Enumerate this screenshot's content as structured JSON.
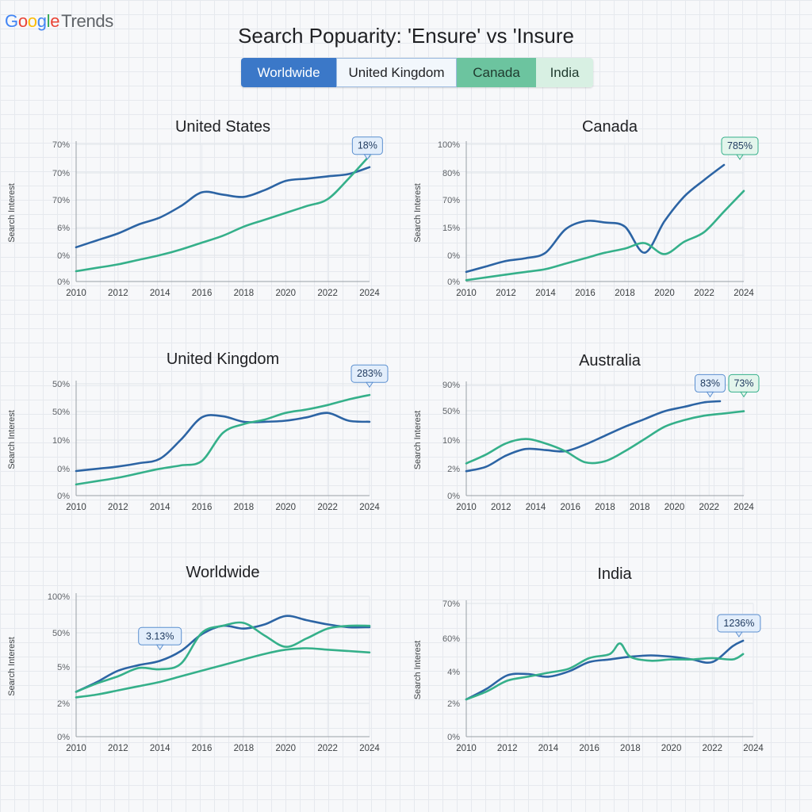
{
  "app": {
    "logo_text": "Google",
    "logo_suffix": "Trends",
    "page_title": "Search Popuarity: 'Ensure' vs 'Insure"
  },
  "tabs": [
    {
      "label": "Worldwide",
      "active": true
    },
    {
      "label": "United Kingdom",
      "active": false
    },
    {
      "label": "Canada",
      "active": false
    },
    {
      "label": "India",
      "active": false
    }
  ],
  "colors": {
    "series_blue": "#2c64a4",
    "series_green": "#35b08a",
    "accent_tab": "#3b78c8",
    "callout_blue_bg": "#e3eefb",
    "callout_green_bg": "#e3f5ec"
  },
  "chart_data": [
    {
      "type": "line",
      "title": "United States",
      "ylabel": "Search Interest",
      "x_ticks": [
        "2010",
        "2012",
        "2014",
        "2016",
        "2018",
        "2020",
        "2022",
        "2024"
      ],
      "y_ticks": [
        "0%",
        "0%",
        "6%",
        "70%",
        "70%",
        "70%"
      ],
      "series": [
        {
          "color_key": "series_blue",
          "x": [
            2010,
            2011,
            2012,
            2013,
            2014,
            2015,
            2016,
            2017,
            2018,
            2019,
            2020,
            2021,
            2022,
            2023,
            2024
          ],
          "y": [
            1.5,
            1.8,
            2.1,
            2.5,
            2.8,
            3.3,
            3.9,
            3.8,
            3.7,
            4.0,
            4.4,
            4.5,
            4.6,
            4.7,
            5.0
          ]
        },
        {
          "color_key": "series_green",
          "x": [
            2010,
            2011,
            2012,
            2013,
            2014,
            2015,
            2016,
            2017,
            2018,
            2019,
            2020,
            2021,
            2022,
            2023,
            2024
          ],
          "y": [
            0.45,
            0.6,
            0.75,
            0.95,
            1.15,
            1.4,
            1.7,
            2.0,
            2.4,
            2.7,
            3.0,
            3.3,
            3.6,
            4.5,
            5.5
          ]
        }
      ],
      "callout": {
        "text": "18%",
        "x": 2023.9,
        "y": 5.35,
        "style": "blue"
      }
    },
    {
      "type": "line",
      "title": "Canada",
      "ylabel": "Search Interest",
      "x_ticks": [
        "2010",
        "2012",
        "2014",
        "2016",
        "2018",
        "2020",
        "2022",
        "2024"
      ],
      "y_ticks": [
        "0%",
        "0%",
        "15%",
        "70%",
        "80%",
        "100%"
      ],
      "series": [
        {
          "color_key": "series_blue",
          "x": [
            2010,
            2011,
            2012,
            2013,
            2014,
            2015,
            2016,
            2017,
            2018,
            2019,
            2020,
            2021,
            2022,
            2023
          ],
          "y": [
            0.35,
            0.55,
            0.75,
            0.85,
            1.05,
            1.9,
            2.2,
            2.15,
            2.0,
            1.05,
            2.2,
            3.1,
            3.7,
            4.25
          ]
        },
        {
          "color_key": "series_green",
          "x": [
            2010,
            2011,
            2012,
            2013,
            2014,
            2015,
            2016,
            2017,
            2018,
            2019,
            2020,
            2021,
            2022,
            2023,
            2024
          ],
          "y": [
            0.05,
            0.15,
            0.25,
            0.35,
            0.45,
            0.65,
            0.85,
            1.05,
            1.2,
            1.4,
            1.0,
            1.45,
            1.8,
            2.55,
            3.3
          ]
        }
      ],
      "callout": {
        "text": "785%",
        "x": 2023.8,
        "y": 4.45,
        "style": "green"
      }
    },
    {
      "type": "line",
      "title": "United Kingdom",
      "ylabel": "Search Interest",
      "x_ticks": [
        "2010",
        "2012",
        "2014",
        "2016",
        "2018",
        "2020",
        "2022",
        "2024"
      ],
      "y_ticks": [
        "0%",
        "0%",
        "10%",
        "50%",
        "50%"
      ],
      "series": [
        {
          "color_key": "series_blue",
          "x": [
            2010,
            2011,
            2012,
            2013,
            2014,
            2015,
            2016,
            2017,
            2018,
            2019,
            2020,
            2021,
            2022,
            2023,
            2024
          ],
          "y": [
            1.1,
            1.2,
            1.3,
            1.45,
            1.65,
            2.5,
            3.5,
            3.55,
            3.3,
            3.3,
            3.35,
            3.5,
            3.7,
            3.35,
            3.3
          ]
        },
        {
          "color_key": "series_green",
          "x": [
            2010,
            2011,
            2012,
            2013,
            2014,
            2015,
            2016,
            2017,
            2018,
            2019,
            2020,
            2021,
            2022,
            2023,
            2024
          ],
          "y": [
            0.5,
            0.65,
            0.8,
            1.0,
            1.2,
            1.35,
            1.55,
            2.8,
            3.2,
            3.4,
            3.7,
            3.85,
            4.05,
            4.3,
            4.5
          ]
        }
      ],
      "callout": {
        "text": "283%",
        "x": 2024,
        "y": 4.85,
        "style": "blue"
      }
    },
    {
      "type": "line",
      "title": "Australia",
      "ylabel": "Search Interest",
      "x_ticks": [
        "2010",
        "2012",
        "2014",
        "2016",
        "2018",
        "2018",
        "2020",
        "2022",
        "2024"
      ],
      "y_ticks": [
        "0%",
        "2%",
        "10%",
        "50%",
        "90%"
      ],
      "series": [
        {
          "color_key": "series_blue",
          "x": [
            2010,
            2011,
            2012,
            2013,
            2014,
            2015,
            2016,
            2017,
            2018,
            2019,
            2020,
            2021,
            2022,
            2022.8
          ],
          "y": [
            1.1,
            1.3,
            1.8,
            2.1,
            2.05,
            2.0,
            2.3,
            2.7,
            3.1,
            3.45,
            3.8,
            4.0,
            4.2,
            4.25
          ]
        },
        {
          "color_key": "series_green",
          "x": [
            2010,
            2011,
            2012,
            2013,
            2014,
            2015,
            2016,
            2017,
            2018,
            2019,
            2020,
            2021,
            2022,
            2023,
            2024
          ],
          "y": [
            1.45,
            1.85,
            2.35,
            2.55,
            2.35,
            2.0,
            1.5,
            1.55,
            2.0,
            2.55,
            3.1,
            3.4,
            3.6,
            3.7,
            3.8
          ]
        }
      ],
      "callout_a": {
        "text": "83%",
        "x": 2022.3,
        "y": 4.45,
        "style": "blue"
      },
      "callout_b": {
        "text": "73%",
        "x": 2024,
        "y": 4.45,
        "style": "green"
      }
    },
    {
      "type": "line",
      "title": "Worldwide",
      "ylabel": "Search Interest",
      "x_ticks": [
        "2010",
        "2012",
        "2014",
        "2016",
        "2018",
        "2020",
        "2022",
        "2024"
      ],
      "y_ticks": [
        "0%",
        "2%",
        "5%",
        "50%",
        "100%"
      ],
      "series": [
        {
          "color_key": "series_blue",
          "x": [
            2010,
            2011,
            2012,
            2013,
            2014,
            2015,
            2016,
            2017,
            2018,
            2019,
            2020,
            2021,
            2022,
            2023,
            2024
          ],
          "y": [
            1.6,
            1.95,
            2.35,
            2.55,
            2.7,
            3.05,
            3.65,
            3.95,
            3.85,
            4.0,
            4.3,
            4.15,
            4.0,
            3.9,
            3.9
          ]
        },
        {
          "color_key": "series_green",
          "x": [
            2010,
            2011,
            2012,
            2013,
            2014,
            2015,
            2016,
            2017,
            2018,
            2019,
            2020,
            2021,
            2022,
            2023,
            2024
          ],
          "y": [
            1.4,
            1.5,
            1.65,
            1.8,
            1.95,
            2.15,
            2.35,
            2.55,
            2.75,
            2.95,
            3.1,
            3.15,
            3.1,
            3.05,
            3.0
          ]
        },
        {
          "color_key": "series_green",
          "x": [
            2010,
            2011,
            2012,
            2013,
            2014,
            2015,
            2016,
            2017,
            2018,
            2019,
            2020,
            2021,
            2022,
            2023,
            2024
          ],
          "y": [
            1.6,
            1.9,
            2.15,
            2.45,
            2.4,
            2.6,
            3.7,
            3.95,
            4.05,
            3.6,
            3.2,
            3.5,
            3.85,
            3.95,
            3.95
          ]
        }
      ],
      "callout": {
        "text": "3.13%",
        "x": 2014,
        "y": 3.1,
        "style": "blue"
      }
    },
    {
      "type": "line",
      "title": "India",
      "ylabel": "Search Interest",
      "x_ticks": [
        "2010",
        "2012",
        "2014",
        "2016",
        "2018",
        "2020",
        "2022",
        "2024"
      ],
      "y_ticks": [
        "0%",
        "2%",
        "4%",
        "60%",
        "70%"
      ],
      "series": [
        {
          "color_key": "series_blue",
          "x": [
            2010,
            2011,
            2012,
            2013,
            2014,
            2015,
            2016,
            2017,
            2018,
            2019,
            2020,
            2021,
            2022,
            2023,
            2023.5
          ],
          "y": [
            1.4,
            1.8,
            2.3,
            2.35,
            2.25,
            2.45,
            2.8,
            2.9,
            3.0,
            3.05,
            3.0,
            2.9,
            2.8,
            3.4,
            3.6
          ]
        },
        {
          "color_key": "series_green",
          "x": [
            2010,
            2011,
            2012,
            2013,
            2014,
            2015,
            2016,
            2017,
            2017.5,
            2018,
            2019,
            2020,
            2021,
            2022,
            2023,
            2023.5
          ],
          "y": [
            1.4,
            1.7,
            2.1,
            2.25,
            2.4,
            2.55,
            2.95,
            3.1,
            3.5,
            3.0,
            2.85,
            2.9,
            2.9,
            2.95,
            2.9,
            3.1
          ]
        }
      ],
      "callout": {
        "text": "1236%",
        "x": 2023.3,
        "y": 3.75,
        "style": "blue"
      }
    }
  ]
}
